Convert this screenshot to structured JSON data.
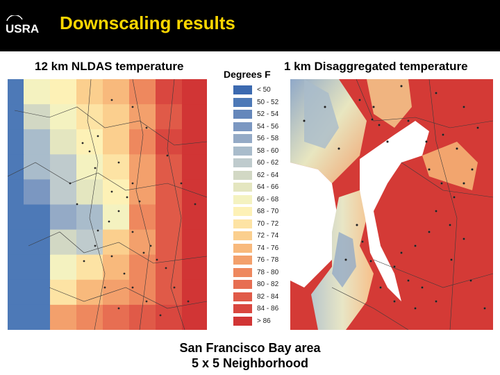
{
  "header": {
    "logo_text": "USRA",
    "title": "Downscaling results"
  },
  "left_map": {
    "caption": "12 km NLDAS  temperature"
  },
  "right_map": {
    "caption": "1 km Disaggregated temperature"
  },
  "legend": {
    "title": "Degrees F",
    "items": [
      {
        "label": "< 50",
        "color": "#3c6ab0"
      },
      {
        "label": "50 - 52",
        "color": "#4d79b7"
      },
      {
        "label": "52 - 54",
        "color": "#6587bb"
      },
      {
        "label": "54 - 56",
        "color": "#7b97c1"
      },
      {
        "label": "56 - 58",
        "color": "#94aac6"
      },
      {
        "label": "58 - 60",
        "color": "#a9bccb"
      },
      {
        "label": "60 - 62",
        "color": "#bfcbcd"
      },
      {
        "label": "62 - 64",
        "color": "#d2d8c4"
      },
      {
        "label": "64 - 66",
        "color": "#e4e6c0"
      },
      {
        "label": "66 - 68",
        "color": "#f4f2c0"
      },
      {
        "label": "68 - 70",
        "color": "#fdf1b6"
      },
      {
        "label": "70 - 72",
        "color": "#fde3a4"
      },
      {
        "label": "72 - 74",
        "color": "#fbcf8e"
      },
      {
        "label": "74 - 76",
        "color": "#f8b97c"
      },
      {
        "label": "76 - 78",
        "color": "#f3a06c"
      },
      {
        "label": "78 - 80",
        "color": "#ee885e"
      },
      {
        "label": "80 - 82",
        "color": "#e76e52"
      },
      {
        "label": "82 - 84",
        "color": "#e05a48"
      },
      {
        "label": "84 - 86",
        "color": "#d9473f"
      },
      {
        "label": "> 86",
        "color": "#d13535"
      }
    ]
  },
  "footer": {
    "line1": "San Francisco Bay area",
    "line2": "5 x 5 Neighborhood"
  }
}
